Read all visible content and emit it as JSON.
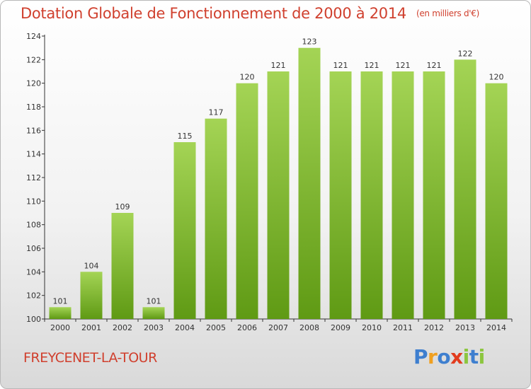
{
  "header": {
    "title": "Dotation Globale de Fonctionnement de 2000 à 2014",
    "unit": "(en milliers d'€)"
  },
  "footer": {
    "location": "FREYCENET-LA-TOUR",
    "logo": "Proxiti"
  },
  "colors": {
    "title": "#d0402e",
    "bar_light": "#a4d455",
    "bar_dark": "#5f9a14",
    "logo_letters": [
      "#3e7fcf",
      "#f0a020",
      "#3e7fcf",
      "#e23c1e",
      "#8cc63f",
      "#3e7fcf",
      "#8cc63f"
    ]
  },
  "chart_data": {
    "type": "bar",
    "categories": [
      "2000",
      "2001",
      "2002",
      "2003",
      "2004",
      "2005",
      "2006",
      "2007",
      "2008",
      "2009",
      "2010",
      "2011",
      "2012",
      "2013",
      "2014"
    ],
    "values": [
      101,
      104,
      109,
      101,
      115,
      117,
      120,
      121,
      123,
      121,
      121,
      121,
      121,
      122,
      120
    ],
    "title": "Dotation Globale de Fonctionnement de 2000 à 2014",
    "unit": "(en milliers d'€)",
    "ylim": [
      100,
      124
    ],
    "yticks": [
      100,
      102,
      104,
      106,
      108,
      110,
      112,
      114,
      116,
      118,
      120,
      122,
      124
    ],
    "grid": false,
    "legend": "none"
  }
}
